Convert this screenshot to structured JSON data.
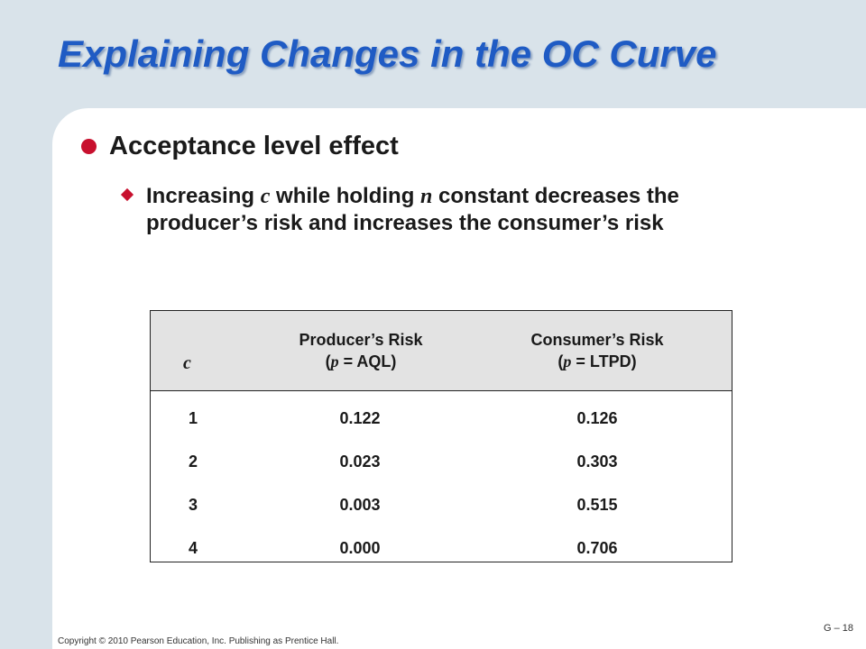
{
  "slide": {
    "title": "Explaining Changes in the OC Curve",
    "bullet1": "Acceptance level effect",
    "bullet2": {
      "part1": "Increasing ",
      "var_c": "c",
      "part2": " while holding ",
      "var_n": "n",
      "part3": " constant decreases the producer’s risk and increases the consumer’s risk"
    }
  },
  "table": {
    "headers": {
      "c": "c",
      "producer_line1": "Producer’s Risk",
      "producer_open": "(",
      "producer_var": "p",
      "producer_rest": " = AQL)",
      "consumer_line1": "Consumer’s Risk",
      "consumer_open": "(",
      "consumer_var": "p",
      "consumer_rest": " = LTPD)"
    },
    "rows": [
      {
        "c": "1",
        "producer": "0.122",
        "consumer": "0.126"
      },
      {
        "c": "2",
        "producer": "0.023",
        "consumer": "0.303"
      },
      {
        "c": "3",
        "producer": "0.003",
        "consumer": "0.515"
      },
      {
        "c": "4",
        "producer": "0.000",
        "consumer": "0.706"
      }
    ]
  },
  "footer": {
    "copyright": "Copyright © 2010 Pearson Education, Inc. Publishing as Prentice Hall.",
    "page": "G – 18"
  },
  "colors": {
    "title": "#1f5bc4",
    "bullet": "#c8102e",
    "background": "#d9e3ea"
  }
}
